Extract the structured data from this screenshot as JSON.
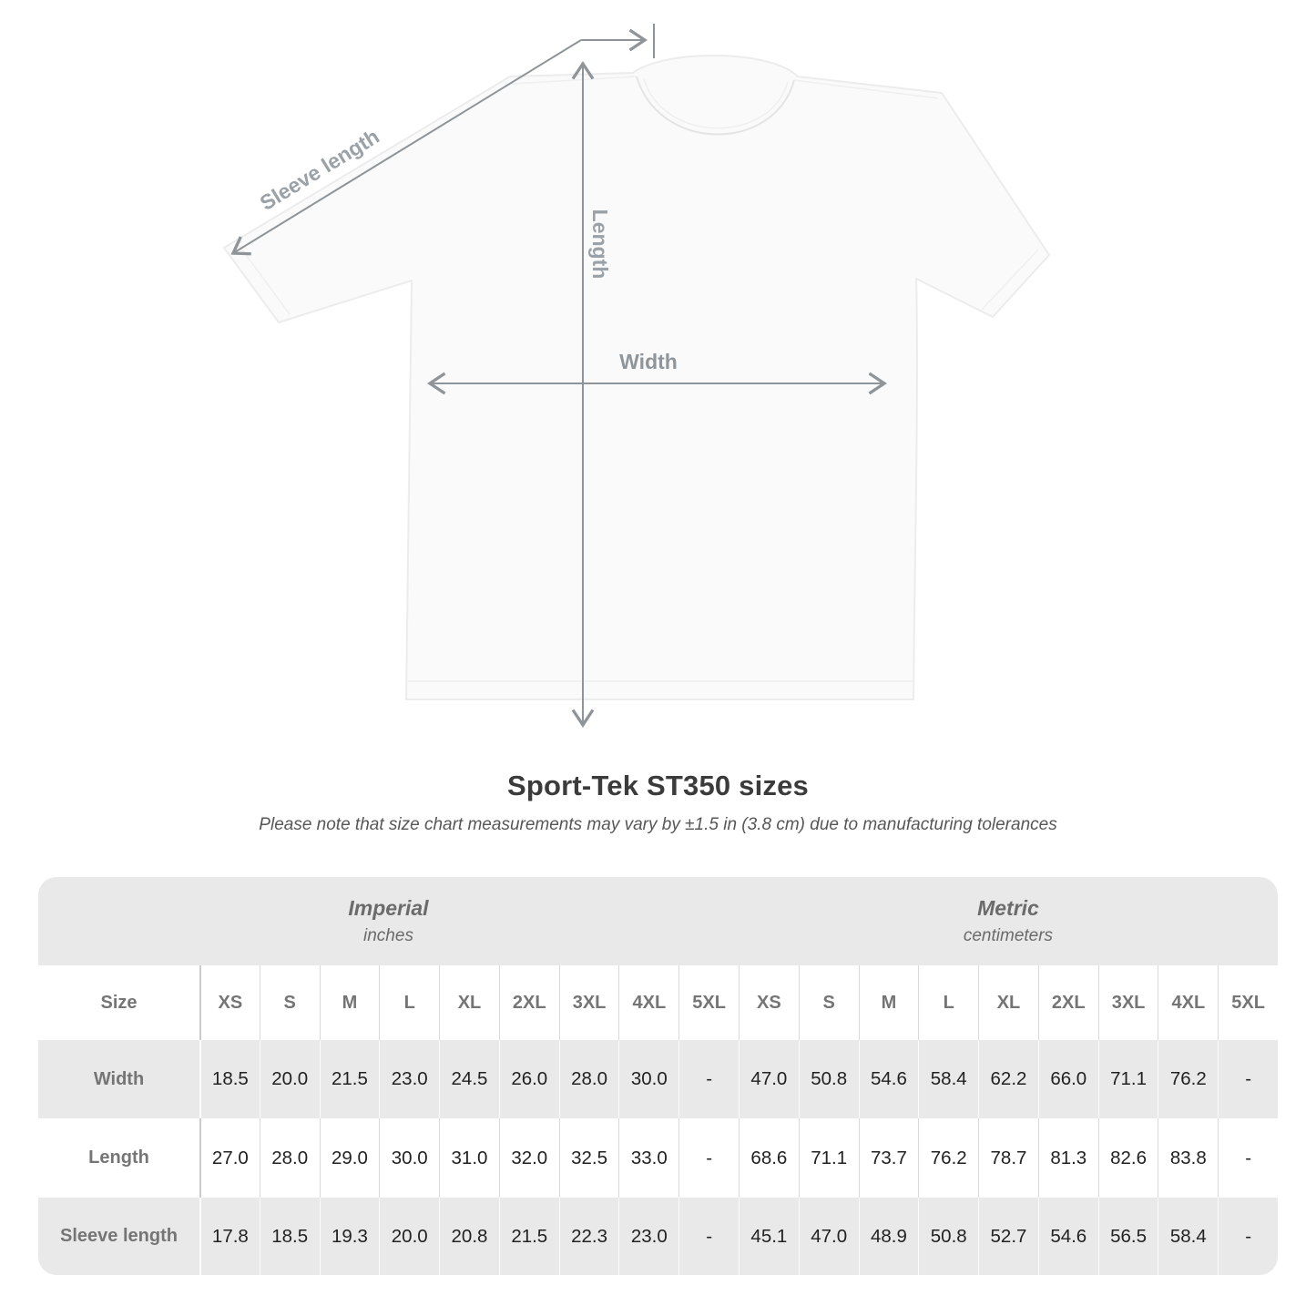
{
  "diagram": {
    "labels": {
      "sleeve_length": "Sleeve length",
      "length": "Length",
      "width": "Width"
    }
  },
  "chart_data": {
    "type": "table",
    "title": "Sport-Tek ST350 sizes",
    "subtitle": "Please note that size chart measurements may vary by ±1.5 in (3.8 cm) due to manufacturing tolerances",
    "unit_groups": [
      {
        "label": "Imperial",
        "units": "inches"
      },
      {
        "label": "Metric",
        "units": "centimeters"
      }
    ],
    "size_column_header": "Size",
    "sizes": [
      "XS",
      "S",
      "M",
      "L",
      "XL",
      "2XL",
      "3XL",
      "4XL",
      "5XL"
    ],
    "measurements": [
      {
        "label": "Width",
        "imperial": [
          "18.5",
          "20.0",
          "21.5",
          "23.0",
          "24.5",
          "26.0",
          "28.0",
          "30.0",
          "-"
        ],
        "metric": [
          "47.0",
          "50.8",
          "54.6",
          "58.4",
          "62.2",
          "66.0",
          "71.1",
          "76.2",
          "-"
        ]
      },
      {
        "label": "Length",
        "imperial": [
          "27.0",
          "28.0",
          "29.0",
          "30.0",
          "31.0",
          "32.0",
          "32.5",
          "33.0",
          "-"
        ],
        "metric": [
          "68.6",
          "71.1",
          "73.7",
          "76.2",
          "78.7",
          "81.3",
          "82.6",
          "83.8",
          "-"
        ]
      },
      {
        "label": "Sleeve length",
        "imperial": [
          "17.8",
          "18.5",
          "19.3",
          "20.0",
          "20.8",
          "21.5",
          "22.3",
          "23.0",
          "-"
        ],
        "metric": [
          "45.1",
          "47.0",
          "48.9",
          "50.8",
          "52.7",
          "54.6",
          "56.5",
          "58.4",
          "-"
        ]
      }
    ]
  },
  "colors": {
    "table_band_gray": "#e9e9e9",
    "divider_on_white": "#dadada",
    "divider_on_gray": "#fbfbfb",
    "value_text": "#222222",
    "header_text": "#757575",
    "title_text": "#3b3b3b",
    "subtitle_text": "#575757",
    "diagram_label": "#9aa1a7",
    "arrow": "#8f9498",
    "shirt_fill": "#fafafa",
    "shirt_outline": "#ececec"
  }
}
